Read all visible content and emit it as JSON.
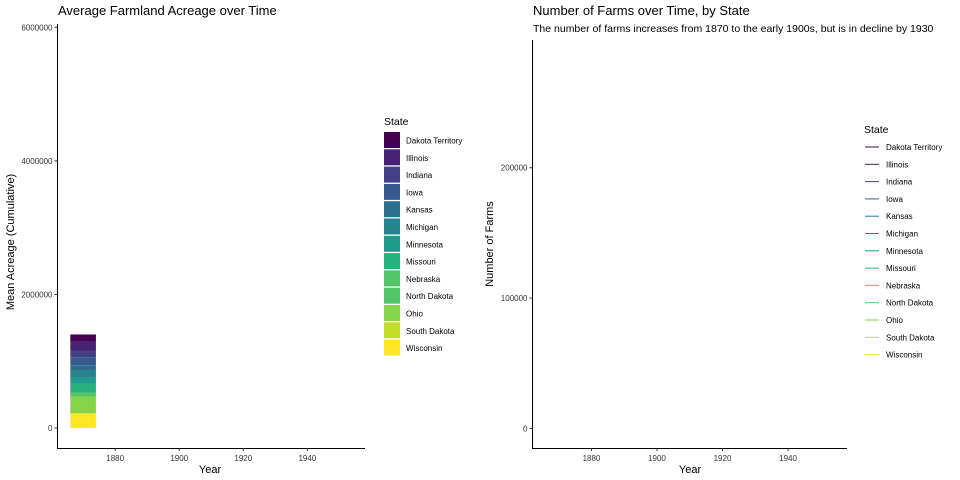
{
  "chart_data": [
    {
      "type": "bar",
      "stacked": true,
      "title": "Average Farmland Acreage over Time",
      "xlabel": "Year",
      "ylabel": "Mean Acreage (Cumulative)",
      "xlim": [
        1862,
        1958
      ],
      "ylim": [
        -300000,
        6050000
      ],
      "x_ticks": [
        1880,
        1900,
        1920,
        1940
      ],
      "y_ticks": [
        0,
        2000000,
        4000000,
        6000000
      ],
      "x_tick_labels": [
        "1880",
        "1900",
        "1920",
        "1940"
      ],
      "y_tick_labels": [
        "0",
        "2000000",
        "4000000",
        "6000000"
      ],
      "grid": false,
      "legend_position": "right",
      "legend_title": "State",
      "bar_x": 1870,
      "bar_width": 8,
      "series": [
        {
          "name": "Dakota Territory",
          "color": "#440154",
          "values": [
            110000
          ]
        },
        {
          "name": "Illinois",
          "color": "#482173",
          "values": [
            130000
          ]
        },
        {
          "name": "Indiana",
          "color": "#433e85",
          "values": [
            100000
          ]
        },
        {
          "name": "Iowa",
          "color": "#38598c",
          "values": [
            120000
          ]
        },
        {
          "name": "Kansas",
          "color": "#2d708e",
          "values": [
            80000
          ]
        },
        {
          "name": "Michigan",
          "color": "#25858e",
          "values": [
            110000
          ]
        },
        {
          "name": "Minnesota",
          "color": "#1e9b8a",
          "values": [
            90000
          ]
        },
        {
          "name": "Missouri",
          "color": "#2ab07f",
          "values": [
            130000
          ]
        },
        {
          "name": "Nebraska",
          "color": "#52c569",
          "values": [
            60000
          ]
        },
        {
          "name": "North Dakota",
          "color": "#52c569",
          "values": [
            0
          ]
        },
        {
          "name": "Ohio",
          "color": "#86d549",
          "values": [
            250000
          ]
        },
        {
          "name": "South Dakota",
          "color": "#c2df23",
          "values": [
            0
          ]
        },
        {
          "name": "Wisconsin",
          "color": "#fde725",
          "values": [
            220000
          ]
        }
      ]
    },
    {
      "type": "line",
      "title": "Number of Farms over Time, by State",
      "subtitle": "The number of farms increases from 1870 to the early 1900s, but is in decline by 1930",
      "xlabel": "Year",
      "ylabel": "Number of Farms",
      "xlim": [
        1862,
        1958
      ],
      "ylim": [
        -15000,
        298000
      ],
      "x_ticks": [
        1880,
        1900,
        1920,
        1940
      ],
      "y_ticks": [
        0,
        100000,
        200000
      ],
      "x_tick_labels": [
        "1880",
        "1900",
        "1920",
        "1940"
      ],
      "y_tick_labels": [
        "0",
        "100000",
        "200000"
      ],
      "grid": false,
      "legend_position": "right",
      "legend_title": "State",
      "series": [
        {
          "name": "Dakota Territory",
          "color": "#440154",
          "values": []
        },
        {
          "name": "Illinois",
          "color": "#482173",
          "values": []
        },
        {
          "name": "Indiana",
          "color": "#433e85",
          "values": []
        },
        {
          "name": "Iowa",
          "color": "#38598c",
          "values": []
        },
        {
          "name": "Kansas",
          "color": "#2d708e",
          "values": []
        },
        {
          "name": "Michigan",
          "color": "#25858e",
          "values": []
        },
        {
          "name": "Minnesota",
          "color": "#1e9b8a",
          "values": []
        },
        {
          "name": "Missouri",
          "color": "#2ab07f",
          "values": []
        },
        {
          "name": "Nebraska",
          "color": "#52c569",
          "values": []
        },
        {
          "name": "North Dakota",
          "color": "#52c569",
          "values": []
        },
        {
          "name": "Ohio",
          "color": "#86d549",
          "values": []
        },
        {
          "name": "South Dakota",
          "color": "#c2df23",
          "values": []
        },
        {
          "name": "Wisconsin",
          "color": "#fde725",
          "values": []
        }
      ]
    }
  ]
}
